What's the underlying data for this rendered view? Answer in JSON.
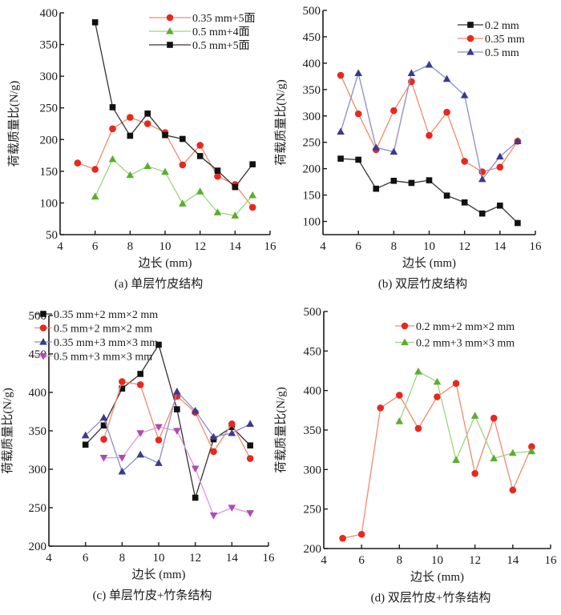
{
  "figure": {
    "panels": [
      "a",
      "b",
      "c",
      "d"
    ]
  },
  "colors": {
    "red": "#e8281e",
    "red_line": "#f08a6e",
    "green": "#5aae2e",
    "green_line": "#9fd47c",
    "black": "#111111",
    "black_line": "#3a3030",
    "blue": "#3b3a8e",
    "blue_line": "#8c8ccc",
    "magenta": "#b04ab0",
    "magenta_line": "#d89ad8",
    "axis": "#1a1a1a"
  },
  "chart_data": [
    {
      "id": "a",
      "type": "line",
      "caption": "(a) 单层竹皮结构",
      "title": "",
      "xlabel": "边长 (mm)",
      "ylabel": "荷载质量比(N/g)",
      "xlim": [
        4,
        16
      ],
      "ylim": [
        50,
        400
      ],
      "xticks": [
        4,
        6,
        8,
        10,
        12,
        14,
        16
      ],
      "yticks": [
        50,
        100,
        150,
        200,
        250,
        300,
        350,
        400
      ],
      "grid": false,
      "legend_position": "top-right",
      "series": [
        {
          "name": "0.35 mm+5面",
          "marker": "circle",
          "color": "red",
          "x": [
            5,
            6,
            7,
            8,
            9,
            10,
            11,
            12,
            13,
            14,
            15
          ],
          "values": [
            163,
            153,
            217,
            235,
            225,
            211,
            160,
            191,
            142,
            129,
            93
          ]
        },
        {
          "name": "0.5 mm+4面",
          "marker": "triangle-up",
          "color": "green",
          "x": [
            6,
            7,
            8,
            9,
            10,
            11,
            12,
            13,
            14,
            15
          ],
          "values": [
            110,
            169,
            144,
            158,
            149,
            99,
            118,
            85,
            80,
            112
          ]
        },
        {
          "name": "0.5 mm+5面",
          "marker": "square",
          "color": "black",
          "x": [
            6,
            7,
            8,
            9,
            10,
            11,
            12,
            13,
            14,
            15
          ],
          "values": [
            385,
            251,
            206,
            241,
            207,
            201,
            174,
            151,
            125,
            161
          ]
        }
      ]
    },
    {
      "id": "b",
      "type": "line",
      "caption": "(b) 双层竹皮结构",
      "title": "",
      "xlabel": "边长 (mm)",
      "ylabel": "荷载质量比(N/g)",
      "xlim": [
        4,
        16
      ],
      "ylim": [
        75,
        500
      ],
      "xticks": [
        4,
        6,
        8,
        10,
        12,
        14,
        16
      ],
      "yticks": [
        100,
        150,
        200,
        250,
        300,
        350,
        400,
        450,
        500
      ],
      "grid": false,
      "legend_position": "top-right",
      "series": [
        {
          "name": "0.2 mm",
          "marker": "square",
          "color": "black",
          "x": [
            5,
            6,
            7,
            8,
            9,
            10,
            11,
            12,
            13,
            14,
            15
          ],
          "values": [
            219,
            217,
            162,
            177,
            173,
            178,
            149,
            136,
            115,
            130,
            97
          ]
        },
        {
          "name": "0.35 mm",
          "marker": "circle",
          "color": "red",
          "x": [
            5,
            6,
            7,
            8,
            9,
            10,
            11,
            12,
            13,
            14,
            15
          ],
          "values": [
            377,
            304,
            236,
            310,
            365,
            263,
            307,
            214,
            194,
            203,
            252
          ]
        },
        {
          "name": "0.5 mm",
          "marker": "triangle-up",
          "color": "blue",
          "x": [
            5,
            6,
            7,
            8,
            9,
            10,
            11,
            12,
            13,
            14,
            15
          ],
          "values": [
            270,
            381,
            240,
            232,
            381,
            397,
            370,
            339,
            180,
            223,
            252
          ]
        }
      ]
    },
    {
      "id": "c",
      "type": "line",
      "caption": "(c) 单层竹皮+竹条结构",
      "title": "",
      "xlabel": "边长 (mm)",
      "ylabel": "荷载质量比(N/g)",
      "xlim": [
        4,
        16
      ],
      "ylim": [
        200,
        500
      ],
      "xticks": [
        4,
        6,
        8,
        10,
        12,
        14,
        16
      ],
      "yticks": [
        200,
        250,
        300,
        350,
        400,
        450,
        500
      ],
      "grid": false,
      "legend_position": "top-left",
      "series": [
        {
          "name": "0.35 mm+2 mm×2 mm",
          "marker": "square",
          "color": "black",
          "x": [
            6,
            7,
            8,
            9,
            10,
            11,
            12,
            13,
            14,
            15
          ],
          "values": [
            332,
            357,
            405,
            424,
            462,
            378,
            263,
            339,
            355,
            331
          ]
        },
        {
          "name": "0.5 mm+2 mm×2 mm",
          "marker": "circle",
          "color": "red",
          "x": [
            7,
            8,
            9,
            10,
            11,
            12,
            13,
            14,
            15
          ],
          "values": [
            339,
            414,
            410,
            338,
            395,
            374,
            323,
            359,
            314
          ]
        },
        {
          "name": "0.35 mm+3 mm×3 mm",
          "marker": "triangle-up",
          "color": "blue",
          "x": [
            6,
            7,
            8,
            9,
            10,
            11,
            12,
            13,
            14,
            15
          ],
          "values": [
            344,
            367,
            297,
            319,
            308,
            401,
            376,
            342,
            347,
            359
          ]
        },
        {
          "name": "0.5 mm+3 mm×3 mm",
          "marker": "triangle-down",
          "color": "magenta",
          "x": [
            7,
            8,
            9,
            10,
            11,
            12,
            13,
            14,
            15
          ],
          "values": [
            315,
            315,
            347,
            355,
            350,
            301,
            240,
            250,
            243
          ]
        }
      ]
    },
    {
      "id": "d",
      "type": "line",
      "caption": "(d) 双层竹皮+竹条结构",
      "title": "",
      "xlabel": "边长 (mm)",
      "ylabel": "荷载质量比(N/g)",
      "xlim": [
        4,
        16
      ],
      "ylim": [
        200,
        500
      ],
      "xticks": [
        4,
        6,
        8,
        10,
        12,
        14,
        16
      ],
      "yticks": [
        200,
        250,
        300,
        350,
        400,
        450,
        500
      ],
      "grid": false,
      "legend_position": "top-right",
      "series": [
        {
          "name": "0.2 mm+2 mm×2 mm",
          "marker": "circle",
          "color": "red",
          "x": [
            5,
            6,
            7,
            8,
            9,
            10,
            11,
            12,
            13,
            14,
            15
          ],
          "values": [
            213,
            218,
            378,
            394,
            352,
            392,
            409,
            295,
            365,
            274,
            329
          ]
        },
        {
          "name": "0.2 mm+3 mm×3 mm",
          "marker": "triangle-up",
          "color": "green",
          "x": [
            8,
            9,
            10,
            11,
            12,
            13,
            14,
            15
          ],
          "values": [
            361,
            424,
            411,
            312,
            368,
            314,
            321,
            323
          ]
        }
      ]
    }
  ]
}
